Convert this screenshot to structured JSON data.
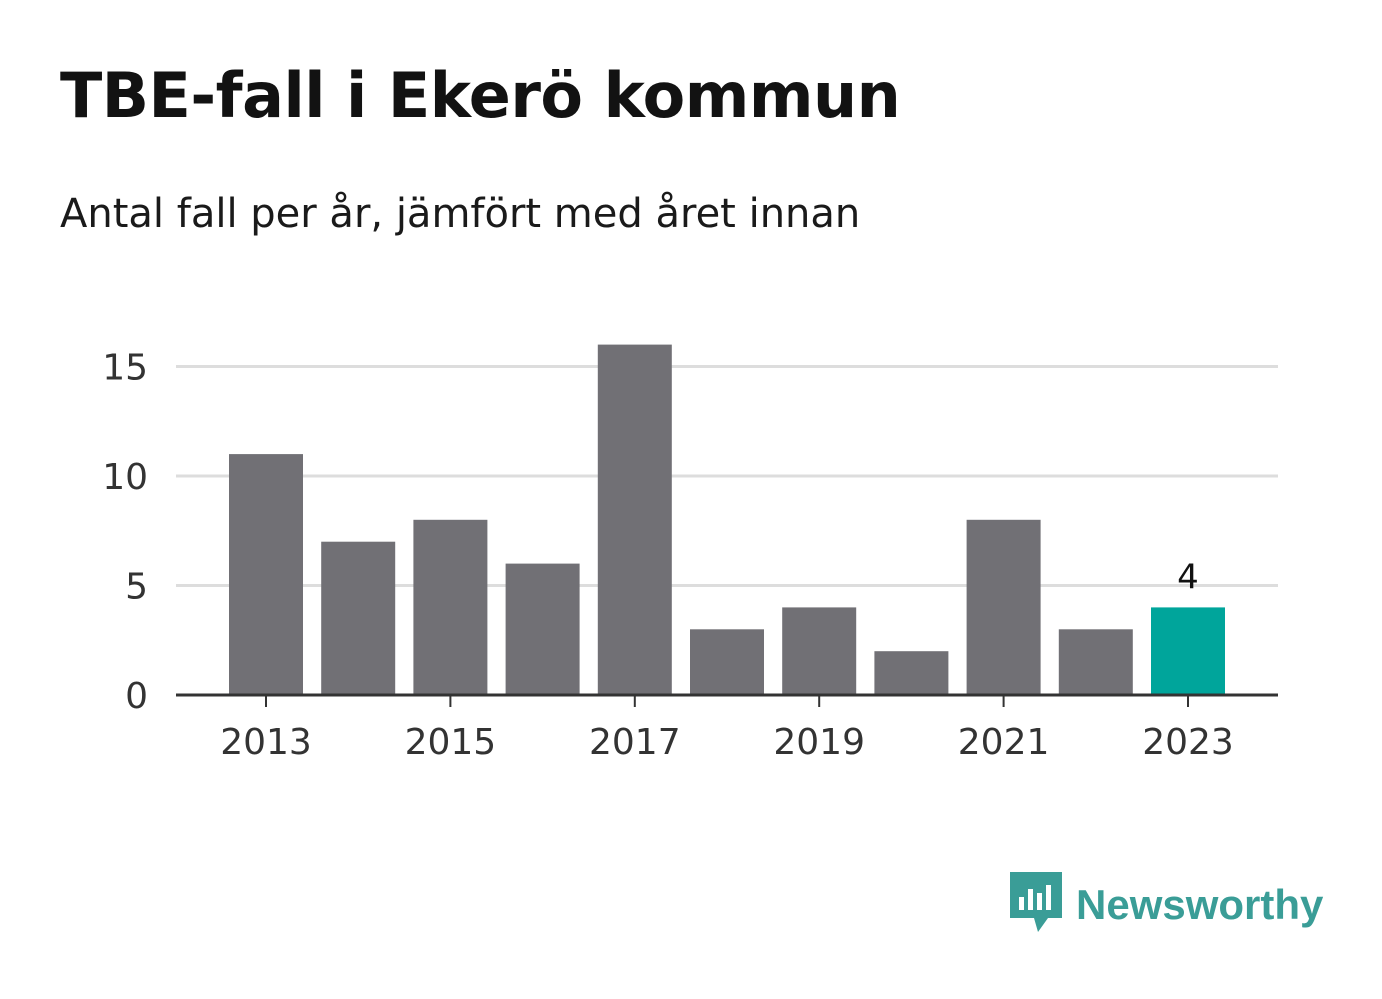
{
  "chart_data": {
    "type": "bar",
    "title": "TBE-fall i Ekerö kommun",
    "subtitle": "Antal fall per år, jämfört med året innan",
    "xlabel": "",
    "ylabel": "",
    "categories": [
      "2013",
      "2014",
      "2015",
      "2016",
      "2017",
      "2018",
      "2019",
      "2020",
      "2021",
      "2022",
      "2023"
    ],
    "values": [
      11,
      7,
      8,
      6,
      16,
      3,
      4,
      2,
      8,
      3,
      4
    ],
    "x_tick_labels": [
      "2013",
      "2015",
      "2017",
      "2019",
      "2021",
      "2023"
    ],
    "y_ticks": [
      0,
      5,
      10,
      15
    ],
    "ylim": [
      0,
      16
    ],
    "grid": true,
    "legend": "none",
    "highlight": {
      "category": "2023",
      "label": "4"
    },
    "colors": {
      "bar": "#717075",
      "highlight": "#00a59b",
      "grid": "#dddddd",
      "axis": "#333333"
    }
  },
  "brand": {
    "name": "Newsworthy",
    "icon": "newsworthy-logo-icon",
    "color": "#3a9d97"
  }
}
